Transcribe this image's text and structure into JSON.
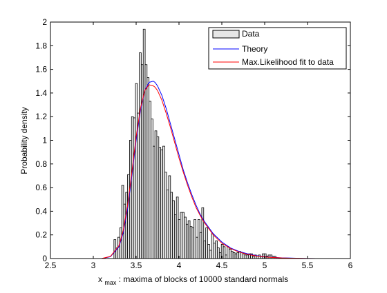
{
  "chart_data": {
    "type": "bar",
    "xlabel_main": "x",
    "xlabel_sub": "max",
    "xlabel_rest": ": maxima of blocks of 10000 standard normals",
    "ylabel": "Probability density",
    "xlim": [
      2.5,
      6
    ],
    "ylim": [
      0,
      2
    ],
    "xticks": [
      2.5,
      3,
      3.5,
      4,
      4.5,
      5,
      5.5,
      6
    ],
    "xtick_labels": [
      "2.5",
      "3",
      "3.5",
      "4",
      "4.5",
      "5",
      "5.5",
      "6"
    ],
    "yticks": [
      0,
      0.2,
      0.4,
      0.6,
      0.8,
      1,
      1.2,
      1.4,
      1.6,
      1.8,
      2
    ],
    "ytick_labels": [
      "0",
      "0.2",
      "0.4",
      "0.6",
      "0.8",
      "1",
      "1.2",
      "1.4",
      "1.6",
      "1.8",
      "2"
    ],
    "grid": false,
    "legend_position": "top-right",
    "histogram": {
      "name": "Data",
      "bin_width": 0.0228,
      "color": "#e6e6e6",
      "edge_color": "#000000",
      "bin_centers": [
        3.252,
        3.275,
        3.297,
        3.32,
        3.343,
        3.366,
        3.389,
        3.411,
        3.434,
        3.457,
        3.48,
        3.503,
        3.525,
        3.548,
        3.571,
        3.594,
        3.616,
        3.639,
        3.662,
        3.685,
        3.708,
        3.73,
        3.753,
        3.776,
        3.799,
        3.822,
        3.844,
        3.867,
        3.89,
        3.913,
        3.935,
        3.958,
        3.981,
        4.004,
        4.027,
        4.049,
        4.072,
        4.095,
        4.118,
        4.141,
        4.163,
        4.186,
        4.209,
        4.232,
        4.254,
        4.277,
        4.3,
        4.323,
        4.346,
        4.368,
        4.391,
        4.414,
        4.437,
        4.459,
        4.482,
        4.505,
        4.528,
        4.551,
        4.573,
        4.596,
        4.619,
        4.642,
        4.665,
        4.687,
        4.71,
        4.733,
        4.756,
        4.778,
        4.801,
        4.824,
        4.847,
        4.87,
        4.892,
        4.915,
        4.938,
        4.961,
        4.983,
        5.006,
        5.029,
        5.052,
        5.075,
        5.097,
        5.12
      ],
      "values": [
        0.16,
        0.09,
        0.18,
        0.26,
        0.62,
        0.46,
        0.56,
        0.71,
        1.0,
        1.2,
        1.19,
        1.48,
        1.23,
        1.74,
        1.64,
        1.94,
        1.64,
        1.53,
        1.33,
        1.18,
        0.95,
        1.08,
        1.03,
        0.94,
        0.92,
        0.95,
        0.73,
        0.58,
        0.7,
        0.56,
        0.49,
        0.37,
        0.52,
        0.33,
        0.39,
        0.39,
        0.35,
        0.29,
        0.32,
        0.27,
        0.26,
        0.33,
        0.18,
        0.33,
        0.22,
        0.43,
        0.15,
        0.26,
        0.12,
        0.07,
        0.21,
        0.13,
        0.15,
        0.09,
        0.05,
        0.12,
        0.1,
        0.03,
        0.1,
        0.08,
        0.06,
        0.05,
        0.04,
        0.05,
        0.06,
        0.05,
        0.04,
        0.03,
        0.03,
        0.04,
        0.04,
        0.02,
        0.03,
        0.02,
        0.03,
        0.02,
        0.04,
        0.04,
        0.02,
        0.03,
        0.03,
        0.02,
        0.02
      ]
    },
    "series": [
      {
        "name": "Theory",
        "color": "#0000ff",
        "x": [
          2.75,
          2.9,
          3.0,
          3.1,
          3.2,
          3.3,
          3.35,
          3.4,
          3.45,
          3.5,
          3.55,
          3.6,
          3.65,
          3.7,
          3.72,
          3.75,
          3.8,
          3.85,
          3.9,
          3.95,
          4.0,
          4.05,
          4.1,
          4.15,
          4.2,
          4.25,
          4.3,
          4.4,
          4.5,
          4.6,
          4.7,
          4.8,
          4.9,
          5.0,
          5.1,
          5.2,
          5.3,
          5.4,
          5.5,
          5.6
        ],
        "y": [
          0.0,
          0.0,
          0.0,
          0.001,
          0.015,
          0.1,
          0.22,
          0.42,
          0.7,
          1.0,
          1.25,
          1.42,
          1.49,
          1.5,
          1.49,
          1.46,
          1.38,
          1.27,
          1.14,
          1.01,
          0.88,
          0.75,
          0.64,
          0.54,
          0.45,
          0.37,
          0.31,
          0.21,
          0.14,
          0.09,
          0.06,
          0.04,
          0.025,
          0.015,
          0.01,
          0.006,
          0.004,
          0.002,
          0.001,
          0.0
        ]
      },
      {
        "name": "Max.Likelihood fit to data",
        "color": "#ff0000",
        "x": [
          2.75,
          2.9,
          3.0,
          3.1,
          3.2,
          3.3,
          3.35,
          3.4,
          3.45,
          3.5,
          3.55,
          3.6,
          3.65,
          3.7,
          3.72,
          3.75,
          3.8,
          3.85,
          3.9,
          3.95,
          4.0,
          4.05,
          4.1,
          4.15,
          4.2,
          4.25,
          4.3,
          4.4,
          4.5,
          4.6,
          4.7,
          4.8,
          4.9,
          5.0,
          5.1,
          5.2,
          5.3,
          5.4,
          5.5,
          5.6
        ],
        "y": [
          0.0,
          0.0,
          0.0,
          0.001,
          0.018,
          0.11,
          0.24,
          0.45,
          0.73,
          1.03,
          1.27,
          1.42,
          1.47,
          1.46,
          1.45,
          1.42,
          1.34,
          1.23,
          1.11,
          0.98,
          0.85,
          0.73,
          0.62,
          0.52,
          0.43,
          0.36,
          0.3,
          0.2,
          0.13,
          0.085,
          0.055,
          0.035,
          0.022,
          0.014,
          0.009,
          0.005,
          0.003,
          0.002,
          0.001,
          0.0
        ]
      }
    ]
  }
}
